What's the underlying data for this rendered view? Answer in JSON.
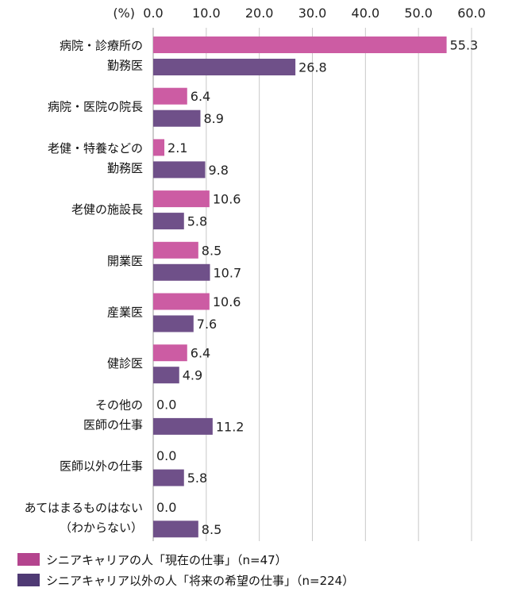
{
  "chart_data": {
    "type": "bar",
    "orientation": "horizontal",
    "unit_label": "(%)",
    "xlim": [
      0,
      60
    ],
    "ticks": [
      "0.0",
      "10.0",
      "20.0",
      "30.0",
      "40.0",
      "50.0",
      "60.0"
    ],
    "grid": true,
    "legend_position": "bottom-left",
    "categories": [
      [
        "病院・診療所の",
        "勤務医"
      ],
      [
        "病院・医院の院長"
      ],
      [
        "老健・特養などの",
        "勤務医"
      ],
      [
        "老健の施設長"
      ],
      [
        "開業医"
      ],
      [
        "産業医"
      ],
      [
        "健診医"
      ],
      [
        "その他の",
        "医師の仕事"
      ],
      [
        "医師以外の仕事"
      ],
      [
        "あてはまるものはない",
        "（わからない）"
      ]
    ],
    "series": [
      {
        "name": "シニアキャリアの人「現在の仕事」（n=47）",
        "color": "#cc5ca3",
        "values": [
          55.3,
          6.4,
          2.1,
          10.6,
          8.5,
          10.6,
          6.4,
          0.0,
          0.0,
          0.0
        ],
        "labels": [
          "55.3",
          "6.4",
          "2.1",
          "10.6",
          "8.5",
          "10.6",
          "6.4",
          "0.0",
          "0.0",
          "0.0"
        ]
      },
      {
        "name": "シニアキャリア以外の人「将来の希望の仕事」（n=224）",
        "color": "#6f5089",
        "values": [
          26.8,
          8.9,
          9.8,
          5.8,
          10.7,
          7.6,
          4.9,
          11.2,
          5.8,
          8.5
        ],
        "labels": [
          "26.8",
          "8.9",
          "9.8",
          "5.8",
          "10.7",
          "7.6",
          "4.9",
          "11.2",
          "5.8",
          "8.5"
        ]
      }
    ],
    "legend_colors": [
      "#b4448e",
      "#4f3a74"
    ]
  }
}
